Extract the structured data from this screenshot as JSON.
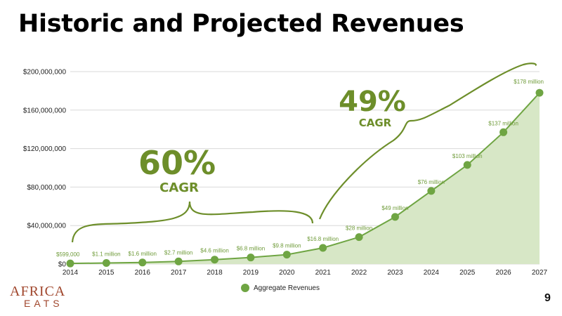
{
  "slide": {
    "title": "Historic and Projected Revenues",
    "page_number": "9"
  },
  "logo": {
    "line1": "AFRICA",
    "line2": "EATS"
  },
  "annotations": {
    "left": {
      "value": "60%",
      "label": "CAGR"
    },
    "right": {
      "value": "49%",
      "label": "CAGR"
    }
  },
  "colors": {
    "line": "#6fa543",
    "area": "#d7e7c6",
    "marker": "#6fa543",
    "annotation": "#6d8e2a",
    "gridline": "#d9d9d9"
  },
  "chart_data": {
    "type": "area",
    "x": [
      "2014",
      "2015",
      "2016",
      "2017",
      "2018",
      "2019",
      "2020",
      "2021",
      "2022",
      "2023",
      "2024",
      "2025",
      "2026",
      "2027"
    ],
    "series": [
      {
        "name": "Aggregate Revenues",
        "values": [
          599000,
          1100000,
          1600000,
          2700000,
          4600000,
          6800000,
          9800000,
          16800000,
          28000000,
          49000000,
          76000000,
          103000000,
          137000000,
          178000000
        ],
        "data_labels": [
          "$599,000",
          "$1.1 million",
          "$1.6 million",
          "$2.7 million",
          "$4.6 million",
          "$6.8 million",
          "$9.8 million",
          "$16.8 million",
          "$28 million",
          "$49 million",
          "$76 million",
          "$103 million",
          "$137 million",
          "$178 million"
        ]
      }
    ],
    "ylim": [
      0,
      200000000
    ],
    "yticks": [
      0,
      40000000,
      80000000,
      120000000,
      160000000,
      200000000
    ],
    "ytick_labels": [
      "$0",
      "$40,000,000",
      "$80,000,000",
      "$120,000,000",
      "$160,000,000",
      "$200,000,000"
    ],
    "grid": true,
    "legend_position": "bottom-center"
  }
}
